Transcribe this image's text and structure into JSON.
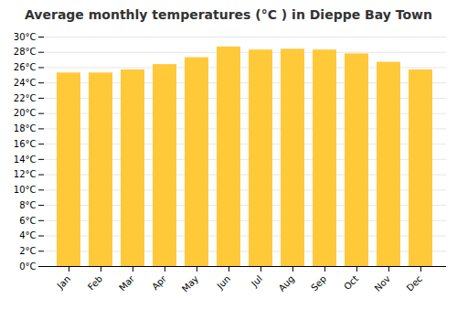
{
  "chart_data": {
    "type": "bar",
    "title": "Average monthly temperatures (°C ) in Dieppe Bay Town",
    "categories": [
      "Jan",
      "Feb",
      "Mar",
      "Apr",
      "May",
      "Jun",
      "Jul",
      "Aug",
      "Sep",
      "Oct",
      "Nov",
      "Dec"
    ],
    "values": [
      25.3,
      25.3,
      25.7,
      26.4,
      27.3,
      28.7,
      28.3,
      28.4,
      28.3,
      27.8,
      26.7,
      25.7
    ],
    "color": "#FFC93A",
    "ylim": [
      0,
      30
    ],
    "yticks": [
      {
        "value": 0,
        "label": "0°C"
      },
      {
        "value": 2,
        "label": "2°C"
      },
      {
        "value": 4,
        "label": "4°C"
      },
      {
        "value": 6,
        "label": "6°C"
      },
      {
        "value": 8,
        "label": "8°C"
      },
      {
        "value": 10,
        "label": "10°C"
      },
      {
        "value": 12,
        "label": "12°C"
      },
      {
        "value": 14,
        "label": "14°C"
      },
      {
        "value": 16,
        "label": "16°C"
      },
      {
        "value": 18,
        "label": "18°C"
      },
      {
        "value": 20,
        "label": "20°C"
      },
      {
        "value": 22,
        "label": "22°C"
      },
      {
        "value": 24,
        "label": "24°C"
      },
      {
        "value": 26,
        "label": "26°C"
      },
      {
        "value": 28,
        "label": "28°C"
      },
      {
        "value": 30,
        "label": "30°C"
      }
    ],
    "grid": true
  }
}
